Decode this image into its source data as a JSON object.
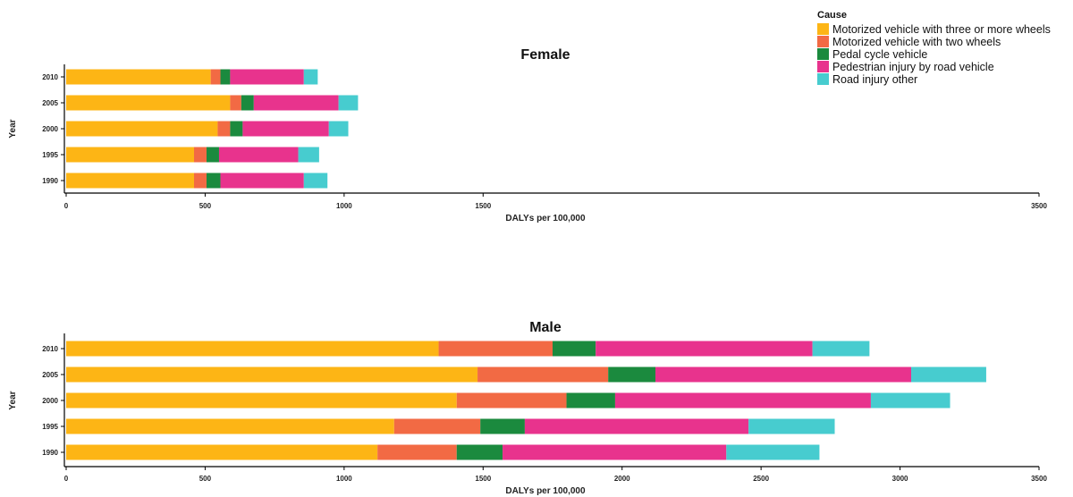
{
  "chart_data": {
    "type": "bar",
    "orientation": "horizontal",
    "stacked": true,
    "legend": {
      "title": "Cause",
      "placement": "top-right",
      "entries": [
        {
          "name": "Motorized vehicle with three or more wheels",
          "color": "#FDB515"
        },
        {
          "name": "Motorized vehicle with two wheels",
          "color": "#F26A44"
        },
        {
          "name": "Pedal cycle vehicle",
          "color": "#1B8A3E"
        },
        {
          "name": "Pedestrian injury by road vehicle",
          "color": "#E8338D"
        },
        {
          "name": "Road injury other",
          "color": "#47CCCF"
        }
      ]
    },
    "xlabel": "DALYs per 100,000",
    "ylabel": "Year",
    "xlim": [
      0,
      3500
    ],
    "ticks_female": [
      0,
      500,
      1000,
      1500,
      3500
    ],
    "ticks_male": [
      0,
      500,
      1000,
      1500,
      2000,
      2500,
      3000,
      3500
    ],
    "categories": [
      "2010",
      "2005",
      "2000",
      "1995",
      "1990"
    ],
    "panels": [
      {
        "title": "Female",
        "series": [
          {
            "name": "Motorized vehicle with three or more wheels",
            "values": [
              520,
              590,
              545,
              460,
              460
            ]
          },
          {
            "name": "Motorized vehicle with two wheels",
            "values": [
              35,
              40,
              45,
              45,
              45
            ]
          },
          {
            "name": "Pedal cycle vehicle",
            "values": [
              35,
              45,
              45,
              45,
              50
            ]
          },
          {
            "name": "Pedestrian injury by road vehicle",
            "values": [
              265,
              305,
              310,
              285,
              300
            ]
          },
          {
            "name": "Road injury other",
            "values": [
              50,
              70,
              70,
              75,
              85
            ]
          }
        ]
      },
      {
        "title": "Male",
        "series": [
          {
            "name": "Motorized vehicle with three or more wheels",
            "values": [
              1340,
              1480,
              1405,
              1180,
              1120
            ]
          },
          {
            "name": "Motorized vehicle with two wheels",
            "values": [
              410,
              470,
              395,
              310,
              285
            ]
          },
          {
            "name": "Pedal cycle vehicle",
            "values": [
              155,
              170,
              175,
              160,
              165
            ]
          },
          {
            "name": "Pedestrian injury by road vehicle",
            "values": [
              780,
              920,
              920,
              805,
              805
            ]
          },
          {
            "name": "Road injury other",
            "values": [
              205,
              270,
              285,
              310,
              335
            ]
          }
        ]
      }
    ]
  }
}
